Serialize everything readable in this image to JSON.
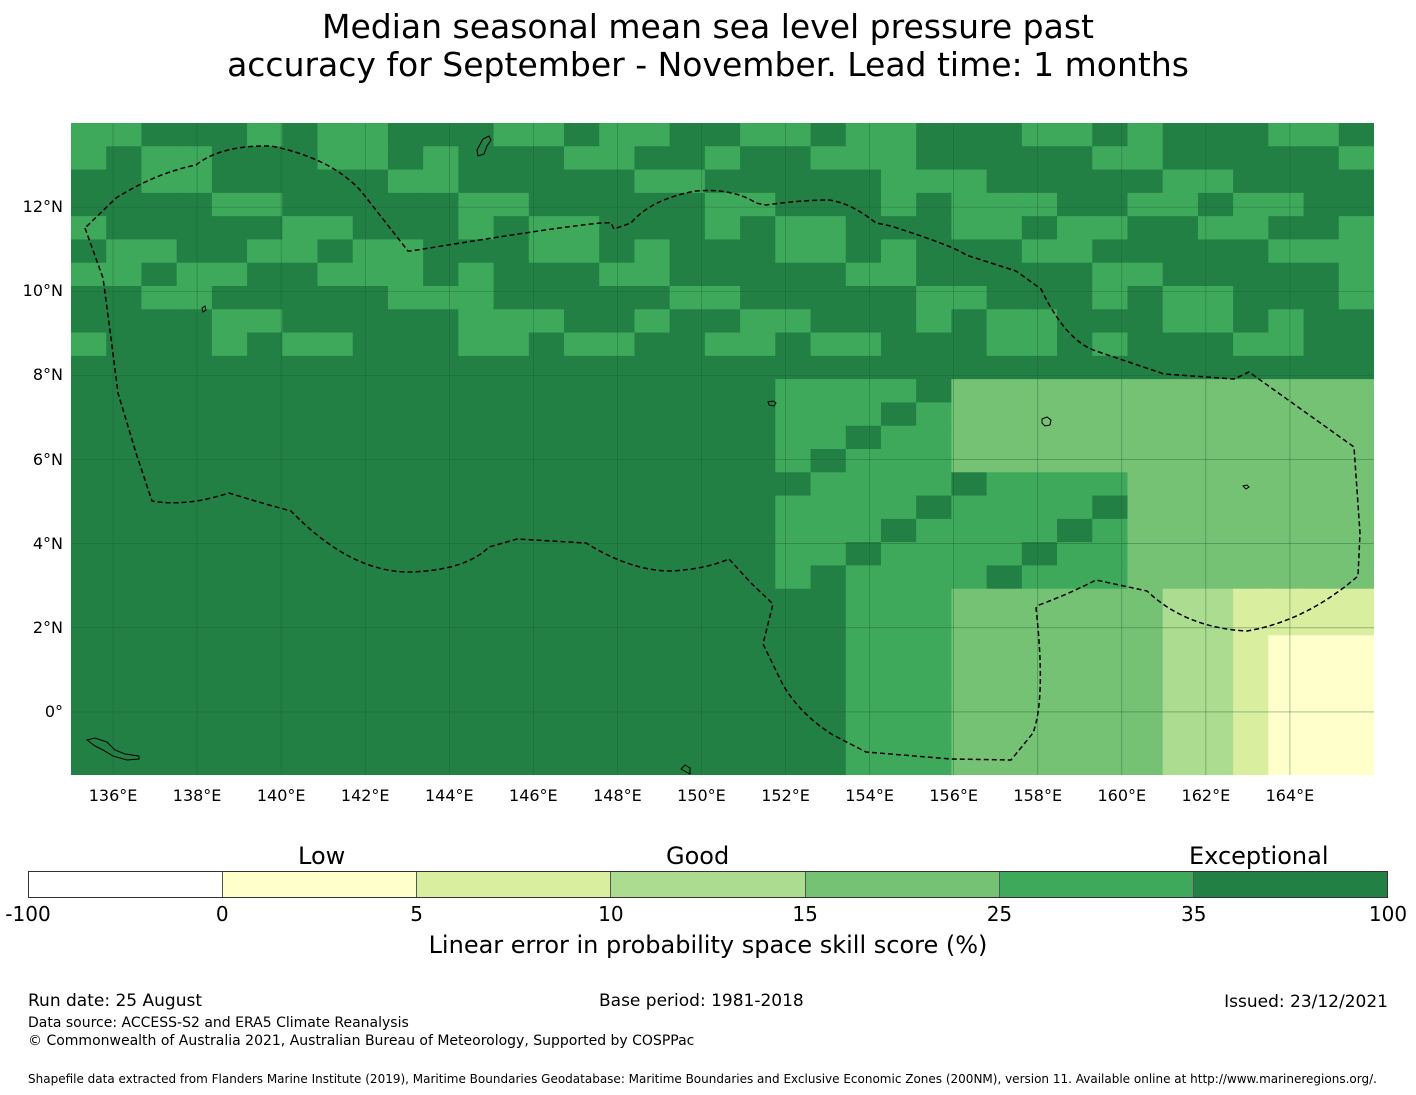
{
  "title": {
    "line1": "Median seasonal mean sea level pressure past",
    "line2": "accuracy for September - November. Lead time: 1 months"
  },
  "map": {
    "lat_labels": [
      "12°N",
      "10°N",
      "8°N",
      "6°N",
      "4°N",
      "2°N",
      "0°"
    ],
    "lon_labels": [
      "136°E",
      "138°E",
      "140°E",
      "142°E",
      "144°E",
      "146°E",
      "148°E",
      "150°E",
      "152°E",
      "154°E",
      "156°E",
      "158°E",
      "160°E",
      "162°E",
      "164°E"
    ],
    "extent": {
      "lon_min": 135,
      "lon_max": 166,
      "lat_min": -1.5,
      "lat_max": 14
    },
    "grid_lines": true,
    "boundary": "dashed EEZ outline",
    "skill_field_description_colors": {
      "exceptional": "#228045",
      "very_good": "#3fa95b",
      "good_high": "#75c275",
      "good": "#abdc8f",
      "low_high": "#d9ee9f",
      "low": "#ffffcc",
      "none": "#ffffff"
    }
  },
  "legend": {
    "categories": [
      "Low",
      "Good",
      "Exceptional"
    ],
    "ticks": [
      "-100",
      "0",
      "5",
      "10",
      "15",
      "25",
      "35",
      "100"
    ],
    "colors": [
      "#ffffff",
      "#ffffcc",
      "#d9ee9f",
      "#abdc8f",
      "#75c275",
      "#3fa95b",
      "#228045"
    ],
    "label": "Linear error in probability space skill score (%)"
  },
  "footer": {
    "run_date": "Run date: 25 August",
    "base_period": "Base period: 1981-2018",
    "issued": "Issued: 23/12/2021",
    "data_source": "Data source: ACCESS-S2 and ERA5 Climate Reanalysis",
    "copyright": "© Commonwealth of Australia 2021, Australian Bureau of Meteorology, Supported by COSPPac",
    "shapefile": "Shapefile data extracted from Flanders Marine Institute (2019), Maritime Boundaries Geodatabase: Maritime Boundaries and Exclusive Economic Zones (200NM), version 11. Available online at http://www.marineregions.org/."
  }
}
